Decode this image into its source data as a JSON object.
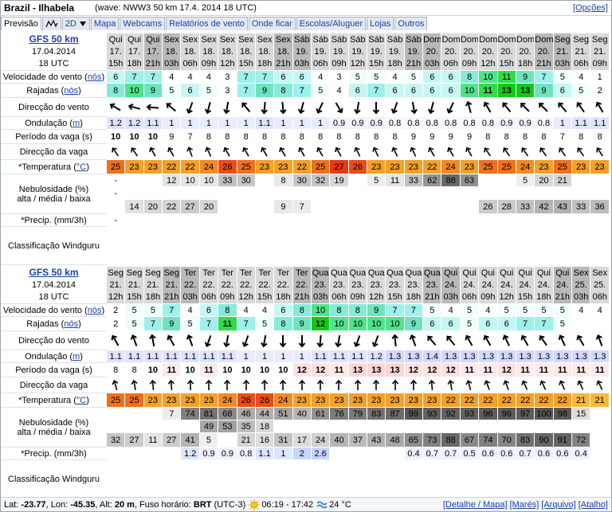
{
  "header": {
    "title": "Brazil - Ilhabela",
    "subtitle": "(wave: NWW3 50 km 17.4. 2014 18 UTC)",
    "options": "[Opções]"
  },
  "tabs": [
    "Previsão",
    "2D",
    "Mapa",
    "Webcams",
    "Relatórios de vento",
    "Onde ficar",
    "Escolas/Aluguer",
    "Lojas",
    "Outros"
  ],
  "row_labels": {
    "wind": {
      "text": "Velocidade do vento (",
      "unit": "nós",
      "end": ")"
    },
    "gusts": {
      "text": "Rajadas (",
      "unit": "nós",
      "end": ")"
    },
    "wind_dir": {
      "text": "Direcção do vento"
    },
    "swell": {
      "text": "Ondulação (",
      "unit": "m",
      "end": ")"
    },
    "period": {
      "text": "Período da vaga (s)"
    },
    "wave_dir": {
      "text": "Direcção da vaga"
    },
    "temperature": {
      "text": "*Temperatura (",
      "unit": "°C",
      "end": ")"
    },
    "clouds": {
      "text": "Nebulosidade (%)",
      "sub": "alta / média / baixa"
    },
    "precip": {
      "text": "*Precip. (mm/3h)"
    },
    "rating": {
      "text": "Classificação Windguru"
    }
  },
  "tables": [
    {
      "model": "GFS 50 km",
      "date": "17.04.2014",
      "run": "18 UTC",
      "days": [
        "Qui",
        "Qui",
        "Qui",
        "Sex",
        "Sex",
        "Sex",
        "Sex",
        "Sex",
        "Sex",
        "Sex",
        "Sáb",
        "Sáb",
        "Sáb",
        "Sáb",
        "Sáb",
        "Sáb",
        "Sáb",
        "Dom",
        "Dom",
        "Dom",
        "Dom",
        "Dom",
        "Dom",
        "Dom",
        "Seg",
        "Seg",
        "Seg"
      ],
      "dates": [
        "17.",
        "17.",
        "17.",
        "18.",
        "18.",
        "18.",
        "18.",
        "18.",
        "18.",
        "18.",
        "19.",
        "19.",
        "19.",
        "19.",
        "19.",
        "19.",
        "19.",
        "20.",
        "20.",
        "20.",
        "20.",
        "20.",
        "20.",
        "20.",
        "21.",
        "21.",
        "21."
      ],
      "hours": [
        "15h",
        "18h",
        "21h",
        "03h",
        "06h",
        "09h",
        "12h",
        "15h",
        "18h",
        "21h",
        "03h",
        "06h",
        "09h",
        "12h",
        "15h",
        "18h",
        "21h",
        "03h",
        "06h",
        "09h",
        "12h",
        "15h",
        "18h",
        "21h",
        "03h",
        "06h",
        "09h"
      ],
      "wind": [
        6,
        7,
        7,
        4,
        4,
        4,
        3,
        7,
        7,
        6,
        6,
        4,
        3,
        5,
        5,
        4,
        5,
        6,
        6,
        8,
        10,
        11,
        9,
        7,
        5,
        4,
        1
      ],
      "gusts": [
        8,
        10,
        9,
        5,
        6,
        5,
        3,
        7,
        9,
        8,
        7,
        5,
        4,
        6,
        7,
        6,
        6,
        6,
        6,
        10,
        11,
        13,
        13,
        9,
        6,
        5,
        2
      ],
      "wind_dir": [
        -60,
        -75,
        -85,
        -50,
        200,
        195,
        190,
        -40,
        185,
        175,
        195,
        205,
        150,
        190,
        180,
        200,
        170,
        195,
        205,
        -15,
        -30,
        -40,
        -45,
        -45,
        -40,
        -35,
        -30
      ],
      "swell": [
        1.2,
        1.2,
        1.1,
        1,
        1,
        1,
        1,
        1,
        1.1,
        1,
        1,
        1,
        0.9,
        0.9,
        0.9,
        0.8,
        0.8,
        0.8,
        0.8,
        0.8,
        0.8,
        0.9,
        0.9,
        0.8,
        1,
        1.1,
        1.1
      ],
      "period": [
        10,
        10,
        10,
        9,
        7,
        8,
        8,
        8,
        8,
        8,
        8,
        8,
        8,
        8,
        8,
        8,
        9,
        9,
        9,
        9,
        8,
        8,
        8,
        8,
        7,
        8,
        8
      ],
      "wave_dir": [
        -35,
        -35,
        -30,
        -30,
        -20,
        -25,
        -30,
        -30,
        -30,
        -30,
        -30,
        -30,
        -30,
        -25,
        -25,
        -25,
        -25,
        -30,
        -30,
        -30,
        -35,
        -35,
        -35,
        -35,
        -35,
        -35,
        -35
      ],
      "temperature": [
        25,
        23,
        23,
        22,
        22,
        24,
        26,
        25,
        23,
        23,
        22,
        25,
        27,
        26,
        23,
        23,
        23,
        22,
        24,
        23,
        25,
        25,
        24,
        23,
        25,
        23,
        23
      ],
      "cloud_high": [
        "-",
        null,
        null,
        12,
        10,
        10,
        33,
        30,
        null,
        8,
        30,
        32,
        19,
        null,
        5,
        11,
        33,
        62,
        88,
        63,
        null,
        null,
        5,
        20,
        21,
        null,
        null
      ],
      "cloud_mid": [
        "-",
        null,
        null,
        null,
        null,
        null,
        null,
        null,
        null,
        null,
        null,
        null,
        null,
        null,
        null,
        null,
        null,
        null,
        null,
        null,
        null,
        null,
        null,
        null,
        null,
        null,
        null
      ],
      "cloud_low": [
        null,
        14,
        20,
        22,
        27,
        20,
        null,
        null,
        null,
        9,
        7,
        null,
        null,
        null,
        null,
        null,
        null,
        null,
        null,
        null,
        26,
        28,
        33,
        42,
        43,
        33,
        36
      ],
      "precip": [
        "-",
        null,
        null,
        null,
        null,
        null,
        null,
        null,
        null,
        null,
        null,
        null,
        null,
        null,
        null,
        null,
        null,
        null,
        null,
        null,
        null,
        null,
        null,
        null,
        null,
        null,
        null
      ]
    },
    {
      "model": "GFS 50 km",
      "date": "17.04.2014",
      "run": "18 UTC",
      "days": [
        "Seg",
        "Seg",
        "Seg",
        "Seg",
        "Ter",
        "Ter",
        "Ter",
        "Ter",
        "Ter",
        "Ter",
        "Ter",
        "Qua",
        "Qua",
        "Qua",
        "Qua",
        "Qua",
        "Qua",
        "Qua",
        "Qui",
        "Qui",
        "Qui",
        "Qui",
        "Qui",
        "Qui",
        "Qui",
        "Sex",
        "Sex"
      ],
      "dates": [
        "21.",
        "21.",
        "21.",
        "21.",
        "22.",
        "22.",
        "22.",
        "22.",
        "22.",
        "22.",
        "22.",
        "23.",
        "23.",
        "23.",
        "23.",
        "23.",
        "23.",
        "23.",
        "24.",
        "24.",
        "24.",
        "24.",
        "24.",
        "24.",
        "24.",
        "25.",
        "25."
      ],
      "hours": [
        "12h",
        "15h",
        "18h",
        "21h",
        "03h",
        "06h",
        "09h",
        "12h",
        "15h",
        "18h",
        "21h",
        "03h",
        "06h",
        "09h",
        "12h",
        "15h",
        "18h",
        "21h",
        "03h",
        "06h",
        "09h",
        "12h",
        "15h",
        "18h",
        "21h",
        "03h",
        "06h"
      ],
      "wind": [
        2,
        5,
        5,
        7,
        4,
        6,
        8,
        4,
        4,
        6,
        8,
        10,
        8,
        8,
        9,
        7,
        7,
        5,
        4,
        5,
        4,
        5,
        5,
        5,
        5,
        4,
        4
      ],
      "gusts": [
        2,
        5,
        7,
        9,
        5,
        7,
        11,
        7,
        5,
        8,
        9,
        12,
        10,
        10,
        10,
        10,
        9,
        6,
        6,
        5,
        6,
        6,
        7,
        7,
        5,
        null,
        null
      ],
      "wind_dir": [
        -30,
        -20,
        -10,
        -30,
        -20,
        200,
        190,
        200,
        190,
        180,
        180,
        185,
        190,
        200,
        200,
        -5,
        -20,
        -40,
        -40,
        -30,
        -30,
        -25,
        -30,
        -35,
        -25,
        -30,
        -20
      ],
      "swell": [
        1.1,
        1.1,
        1.1,
        1.1,
        1.1,
        1.1,
        1.1,
        1,
        1,
        1,
        1,
        1.1,
        1.1,
        1.1,
        1.2,
        1.3,
        1.3,
        1.4,
        1.3,
        1.3,
        1.3,
        1.3,
        1.3,
        1.3,
        1.3,
        1.3,
        1.3
      ],
      "period": [
        8,
        8,
        10,
        11,
        10,
        11,
        10,
        10,
        10,
        10,
        12,
        12,
        11,
        13,
        13,
        13,
        12,
        12,
        12,
        11,
        11,
        12,
        11,
        11,
        11,
        11,
        11
      ],
      "wave_dir": [
        -15,
        -10,
        -5,
        -5,
        0,
        0,
        0,
        0,
        0,
        0,
        0,
        0,
        0,
        0,
        0,
        0,
        0,
        -5,
        -10,
        -15,
        -20,
        -20,
        -25,
        -25,
        -25,
        -25,
        -25
      ],
      "temperature": [
        25,
        25,
        23,
        23,
        23,
        23,
        24,
        26,
        26,
        24,
        23,
        23,
        23,
        23,
        23,
        23,
        23,
        23,
        22,
        22,
        22,
        22,
        22,
        22,
        22,
        21,
        21
      ],
      "cloud_high": [
        null,
        null,
        null,
        7,
        74,
        81,
        68,
        46,
        44,
        51,
        40,
        61,
        76,
        79,
        83,
        87,
        99,
        93,
        92,
        93,
        96,
        96,
        97,
        100,
        98,
        15,
        null
      ],
      "cloud_mid": [
        null,
        null,
        null,
        null,
        null,
        49,
        53,
        35,
        18,
        null,
        null,
        null,
        null,
        null,
        null,
        null,
        null,
        null,
        null,
        null,
        null,
        null,
        null,
        null,
        null,
        null,
        null
      ],
      "cloud_low": [
        32,
        27,
        11,
        27,
        41,
        5,
        null,
        21,
        16,
        31,
        17,
        24,
        40,
        37,
        43,
        48,
        65,
        73,
        88,
        67,
        74,
        70,
        83,
        90,
        91,
        72,
        null
      ],
      "precip": [
        null,
        null,
        null,
        null,
        1.2,
        0.9,
        0.9,
        0.8,
        1.1,
        1,
        2,
        2.6,
        null,
        null,
        null,
        null,
        0.4,
        0.7,
        0.7,
        0.5,
        0.6,
        0.6,
        0.7,
        0.6,
        0.6,
        0.4,
        null
      ]
    }
  ],
  "footer": {
    "location": [
      {
        "text": "Lat: "
      },
      {
        "text": "-23.77",
        "bold": true
      },
      {
        "text": ", Lon: "
      },
      {
        "text": "-45.35",
        "bold": true
      },
      {
        "text": ", Alt: "
      },
      {
        "text": "20 m",
        "bold": true
      },
      {
        "text": ", Fuso horário: "
      },
      {
        "text": "BRT",
        "bold": true
      },
      {
        "text": " (UTC-3)"
      }
    ],
    "sun": "06:19 - 17:42",
    "water_temp": "24 °C",
    "links": [
      "[Detalhe / Mapa]",
      "[Marés]",
      "[Arquivo]",
      "[Atalho]"
    ]
  }
}
